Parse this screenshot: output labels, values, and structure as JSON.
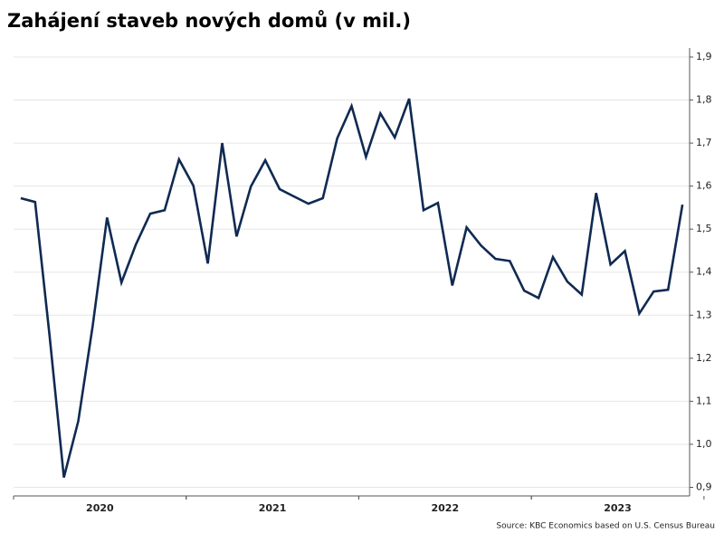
{
  "chart_data": {
    "type": "line",
    "title": "Zahájení staveb nových domů (v mil.)",
    "source": "Source: KBC Economics based on U.S. Census Bureau",
    "categories": [
      null,
      null,
      null,
      null,
      null,
      "2020",
      null,
      null,
      null,
      null,
      null,
      null,
      null,
      null,
      null,
      null,
      null,
      "2021",
      null,
      null,
      null,
      null,
      null,
      null,
      null,
      null,
      null,
      null,
      null,
      "2022",
      null,
      null,
      null,
      null,
      null,
      null,
      null,
      null,
      null,
      null,
      null,
      "2023",
      null,
      null,
      null,
      null,
      null
    ],
    "series": [
      {
        "name": "Zahájení staveb",
        "color": "#0f2a52",
        "values": [
          1.572,
          1.563,
          1.254,
          0.923,
          1.054,
          1.275,
          1.527,
          1.376,
          1.464,
          1.536,
          1.544,
          1.662,
          1.601,
          1.42,
          1.7,
          1.483,
          1.599,
          1.66,
          1.593,
          1.576,
          1.559,
          1.572,
          1.711,
          1.786,
          1.668,
          1.769,
          1.713,
          1.803,
          1.544,
          1.561,
          1.369,
          1.504,
          1.462,
          1.431,
          1.426,
          1.357,
          1.34,
          1.435,
          1.378,
          1.348,
          1.584,
          1.418,
          1.449,
          1.304,
          1.355,
          1.359,
          1.557
        ]
      }
    ],
    "ylim": [
      0.88,
      1.9
    ],
    "yticks": [
      {
        "value": 0.9,
        "label": "0,9"
      },
      {
        "value": 1.0,
        "label": "1,0"
      },
      {
        "value": 1.1,
        "label": "1,1"
      },
      {
        "value": 1.2,
        "label": "1,2"
      },
      {
        "value": 1.3,
        "label": "1,3"
      },
      {
        "value": 1.4,
        "label": "1,4"
      },
      {
        "value": 1.5,
        "label": "1,5"
      },
      {
        "value": 1.6,
        "label": "1,6"
      },
      {
        "value": 1.7,
        "label": "1,7"
      },
      {
        "value": 1.8,
        "label": "1,8"
      },
      {
        "value": 1.9,
        "label": "1,9"
      }
    ],
    "grid": true
  }
}
